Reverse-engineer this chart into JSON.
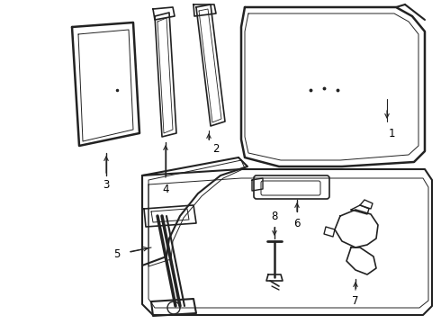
{
  "background_color": "#ffffff",
  "line_color": "#222222",
  "label_color": "#000000",
  "fig_width": 4.9,
  "fig_height": 3.6,
  "dpi": 100,
  "font_size": 8.5
}
